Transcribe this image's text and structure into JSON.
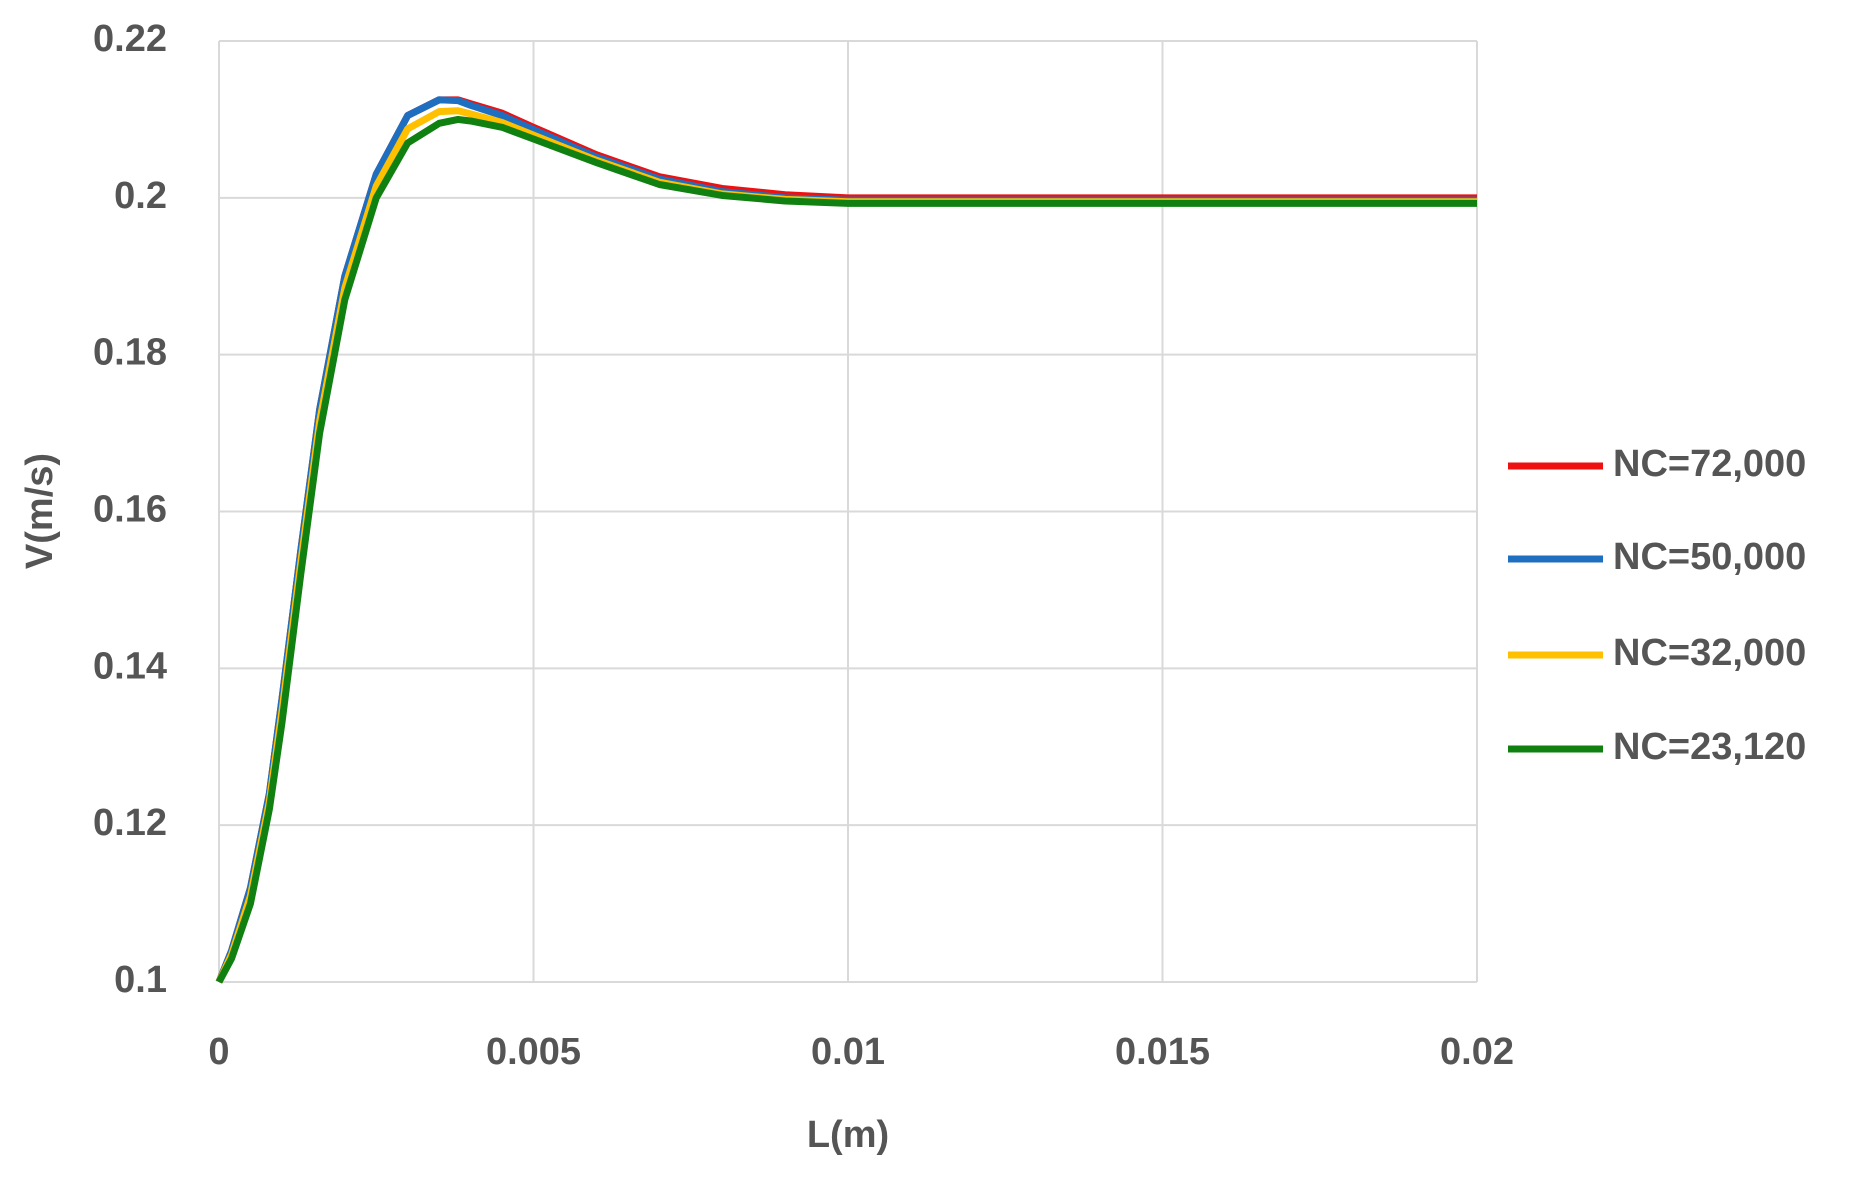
{
  "chart_data": {
    "type": "line",
    "x_label": "L(m)",
    "y_label": "V(m/s)",
    "x": [
      0,
      0.0002,
      0.0005,
      0.0008,
      0.001,
      0.0013,
      0.0016,
      0.002,
      0.0025,
      0.003,
      0.0035,
      0.0038,
      0.004,
      0.0045,
      0.005,
      0.006,
      0.007,
      0.008,
      0.009,
      0.01,
      0.012,
      0.015,
      0.02
    ],
    "series": [
      {
        "name": "NC=72,000",
        "color": "#ee1111",
        "values": [
          0.1,
          0.104,
          0.112,
          0.124,
          0.136,
          0.155,
          0.173,
          0.19,
          0.203,
          0.2105,
          0.2125,
          0.2125,
          0.212,
          0.2108,
          0.209,
          0.2055,
          0.2027,
          0.2012,
          0.2004,
          0.2,
          0.2,
          0.2,
          0.2
        ]
      },
      {
        "name": "NC=50,000",
        "color": "#1f6fc0",
        "values": [
          0.1,
          0.104,
          0.112,
          0.124,
          0.136,
          0.155,
          0.173,
          0.19,
          0.203,
          0.2105,
          0.2125,
          0.2124,
          0.2118,
          0.2105,
          0.2087,
          0.2052,
          0.2024,
          0.2008,
          0.2,
          0.1997,
          0.1997,
          0.1997,
          0.1997
        ]
      },
      {
        "name": "NC=32,000",
        "color": "#ffc000",
        "values": [
          0.1,
          0.1035,
          0.111,
          0.123,
          0.1345,
          0.1535,
          0.1715,
          0.1885,
          0.2015,
          0.2088,
          0.211,
          0.2111,
          0.2107,
          0.2096,
          0.208,
          0.2048,
          0.202,
          0.2005,
          0.1998,
          0.1995,
          0.1995,
          0.1995,
          0.1995
        ]
      },
      {
        "name": "NC=23,120",
        "color": "#108010",
        "values": [
          0.1,
          0.103,
          0.11,
          0.122,
          0.133,
          0.152,
          0.17,
          0.187,
          0.2,
          0.207,
          0.2095,
          0.21,
          0.2098,
          0.209,
          0.2075,
          0.2045,
          0.2017,
          0.2003,
          0.1996,
          0.1993,
          0.1993,
          0.1993,
          0.1993
        ]
      }
    ],
    "xlim": [
      0,
      0.02
    ],
    "xticks": [
      0,
      0.005,
      0.01,
      0.015,
      0.02
    ],
    "ylim": [
      0.1,
      0.22
    ],
    "yticks": [
      0.1,
      0.12,
      0.14,
      0.16,
      0.18,
      0.2,
      0.22
    ],
    "grid": true,
    "legend": "right"
  }
}
